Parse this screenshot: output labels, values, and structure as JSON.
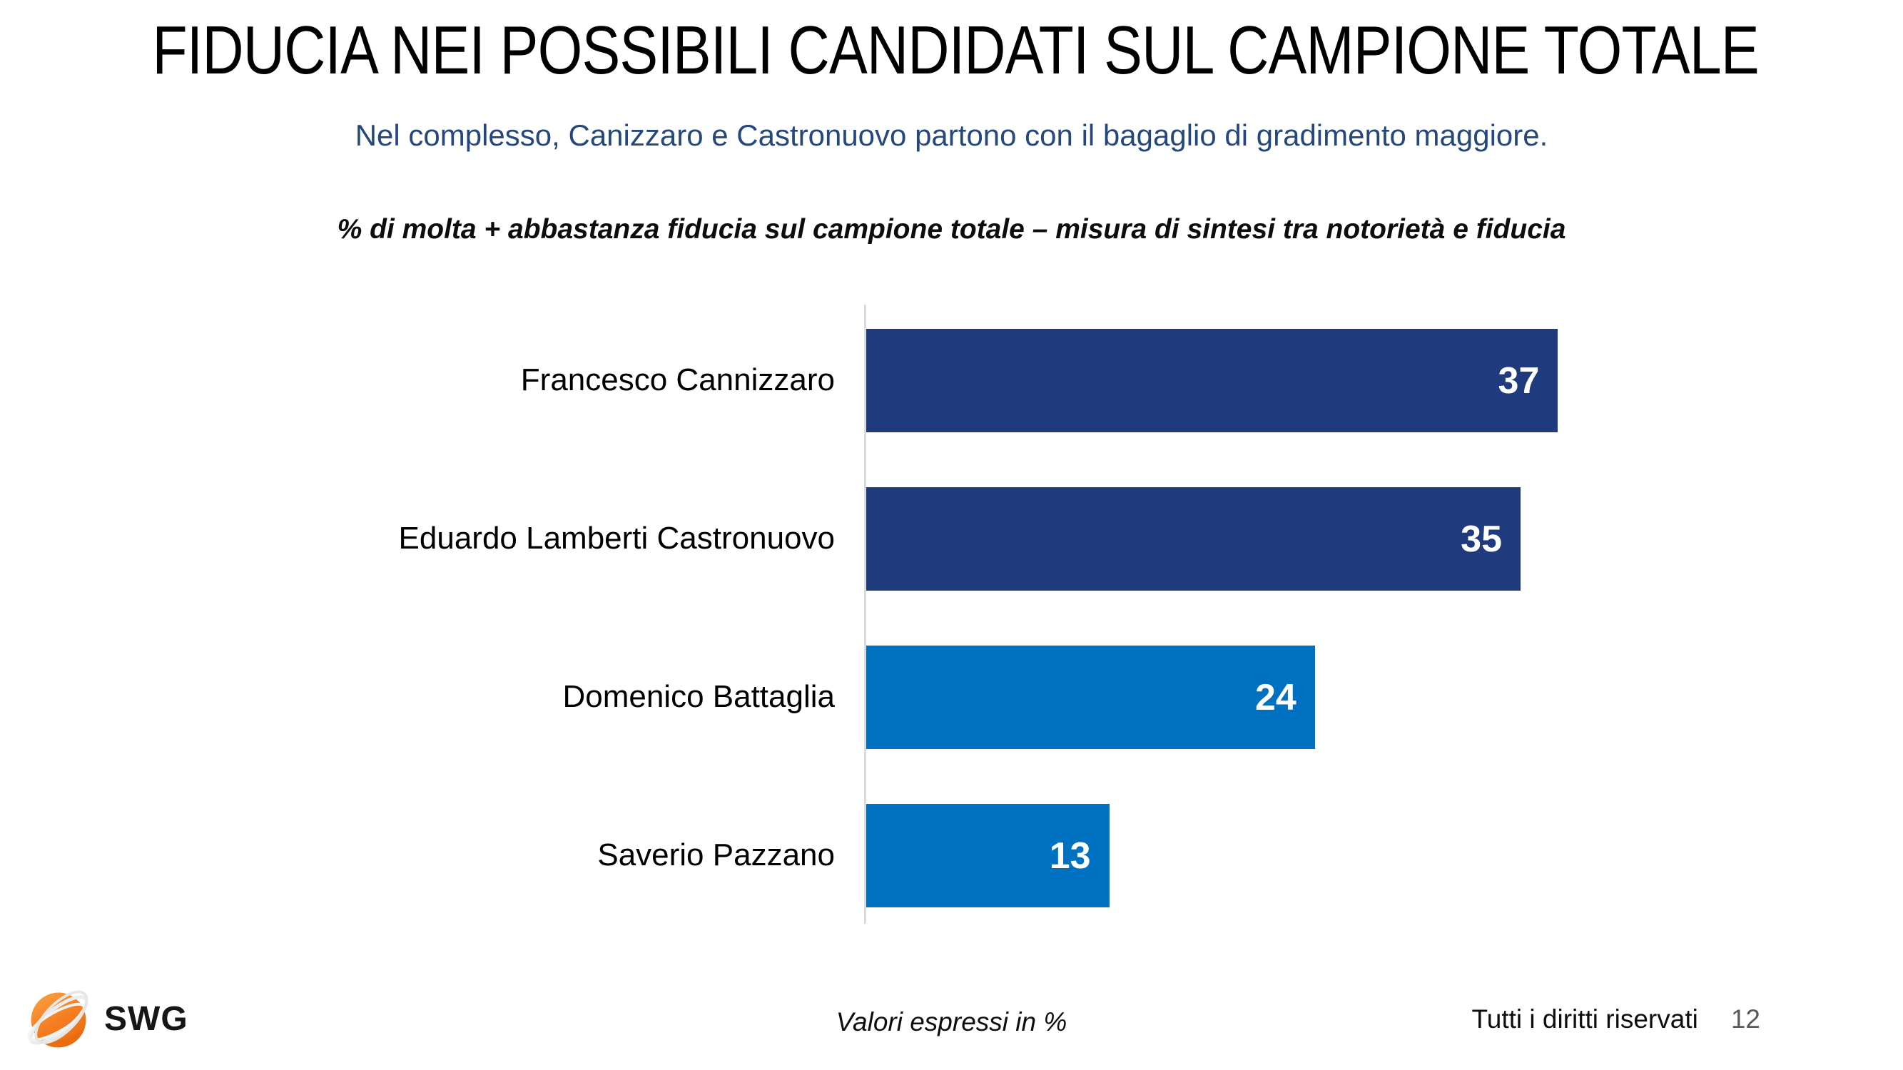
{
  "header": {
    "title": "FIDUCIA NEI POSSIBILI CANDIDATI SUL CAMPIONE TOTALE",
    "subtitle": "Nel complesso, Canizzaro e Castronuovo partono con il bagaglio di gradimento maggiore."
  },
  "chart_data": {
    "type": "bar",
    "orientation": "horizontal",
    "title": "% di molta + abbastanza fiducia sul campione totale – misura di sintesi tra notorietà e fiducia",
    "categories": [
      "Francesco Cannizzaro",
      "Eduardo Lamberti Castronuovo",
      "Domenico Battaglia",
      "Saverio Pazzano"
    ],
    "values": [
      37,
      35,
      24,
      13
    ],
    "bar_colors": [
      "#1F3A7D",
      "#1F3A7D",
      "#0070C0",
      "#0070C0"
    ],
    "value_label_color": "#FFFFFF",
    "xlabel": "",
    "ylabel": "",
    "xlim": [
      0,
      40
    ],
    "grid": false,
    "legend": false
  },
  "footer": {
    "logo_text": "SWG",
    "note": "Valori espressi in %",
    "rights": "Tutti i diritti riservati",
    "page_number": "12"
  },
  "colors": {
    "navy": "#1F3A7D",
    "blue": "#0070C0",
    "subtitle_blue": "#24477D",
    "axis_gray": "#D8DBDF",
    "page_number_gray": "#595959",
    "logo_orange": "#F47B20"
  }
}
